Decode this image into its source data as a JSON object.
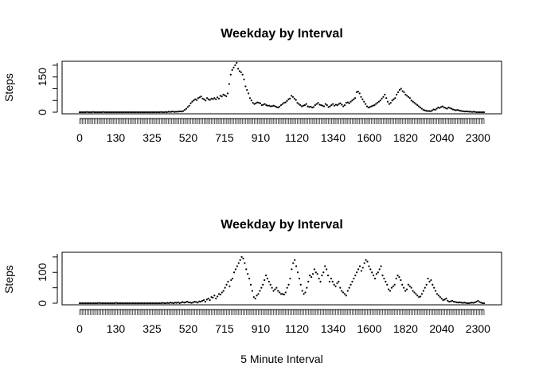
{
  "figure": {
    "xlabel": "5 Minute Interval"
  },
  "chart_data": [
    {
      "type": "scatter",
      "title": "Weekday by Interval",
      "xlabel": "",
      "ylabel": "Steps",
      "ylim": [
        0,
        210
      ],
      "yticks": [
        "0",
        "150"
      ],
      "xticks": [
        "0",
        "130",
        "325",
        "520",
        "715",
        "910",
        "1120",
        "1340",
        "1600",
        "1820",
        "2040",
        "2300"
      ],
      "x_start": 0,
      "x_step": 5,
      "values": [
        0,
        0,
        0,
        0,
        0,
        1,
        0,
        0,
        0,
        1,
        0,
        0,
        0,
        0,
        0,
        0,
        1,
        0,
        0,
        0,
        0,
        0,
        0,
        0,
        0,
        0,
        0,
        0,
        0,
        0,
        0,
        0,
        0,
        0,
        0,
        0,
        0,
        0,
        0,
        0,
        0,
        0,
        0,
        0,
        0,
        0,
        0,
        0,
        0,
        0,
        0,
        0,
        0,
        0,
        0,
        1,
        0,
        0,
        1,
        0,
        2,
        1,
        2,
        3,
        1,
        2,
        2,
        3,
        4,
        3,
        5,
        10,
        15,
        22,
        28,
        38,
        45,
        50,
        55,
        52,
        60,
        63,
        67,
        58,
        55,
        50,
        60,
        55,
        52,
        58,
        56,
        60,
        55,
        63,
        58,
        70,
        67,
        75,
        72,
        68,
        80,
        120,
        160,
        180,
        190,
        200,
        210,
        185,
        175,
        170,
        160,
        140,
        110,
        95,
        80,
        60,
        50,
        40,
        35,
        38,
        42,
        40,
        38,
        30,
        32,
        35,
        30,
        28,
        28,
        25,
        26,
        28,
        25,
        22,
        20,
        24,
        30,
        35,
        40,
        42,
        48,
        55,
        58,
        70,
        65,
        58,
        52,
        40,
        35,
        30,
        25,
        28,
        30,
        35,
        25,
        22,
        24,
        20,
        22,
        30,
        35,
        40,
        32,
        30,
        28,
        25,
        35,
        30,
        22,
        25,
        30,
        35,
        28,
        32,
        30,
        35,
        38,
        32,
        25,
        30,
        40,
        42,
        38,
        45,
        50,
        55,
        60,
        85,
        88,
        80,
        65,
        55,
        45,
        35,
        25,
        20,
        22,
        25,
        28,
        30,
        35,
        40,
        45,
        50,
        58,
        65,
        75,
        60,
        45,
        35,
        40,
        50,
        55,
        60,
        75,
        85,
        95,
        100,
        90,
        85,
        75,
        70,
        65,
        60,
        50,
        45,
        40,
        35,
        30,
        25,
        20,
        15,
        10,
        8,
        6,
        5,
        5,
        4,
        8,
        12,
        10,
        15,
        20,
        18,
        22,
        25,
        20,
        18,
        15,
        20,
        18,
        15,
        12,
        10,
        8,
        10,
        8,
        6,
        5,
        4,
        3,
        4,
        3,
        2,
        2,
        1,
        2,
        1,
        0,
        0,
        0,
        0,
        0,
        0
      ]
    },
    {
      "type": "scatter",
      "title": "Weekday by Interval",
      "xlabel": "5 Minute Interval",
      "ylabel": "Steps",
      "ylim": [
        0,
        160
      ],
      "yticks": [
        "0",
        "100"
      ],
      "xticks": [
        "0",
        "130",
        "325",
        "520",
        "715",
        "910",
        "1120",
        "1340",
        "1600",
        "1820",
        "2040",
        "2300"
      ],
      "x_start": 0,
      "x_step": 5,
      "values": [
        0,
        0,
        0,
        0,
        0,
        0,
        0,
        0,
        0,
        0,
        0,
        0,
        0,
        1,
        0,
        0,
        0,
        0,
        0,
        0,
        0,
        0,
        0,
        0,
        1,
        0,
        0,
        0,
        0,
        0,
        0,
        0,
        0,
        0,
        0,
        0,
        0,
        0,
        0,
        0,
        0,
        0,
        0,
        0,
        0,
        0,
        0,
        0,
        0,
        0,
        0,
        0,
        0,
        0,
        0,
        1,
        0,
        0,
        1,
        0,
        2,
        1,
        0,
        2,
        1,
        3,
        0,
        2,
        4,
        2,
        3,
        5,
        3,
        2,
        1,
        3,
        5,
        4,
        2,
        6,
        5,
        8,
        10,
        5,
        12,
        15,
        10,
        20,
        18,
        25,
        15,
        22,
        30,
        28,
        35,
        40,
        50,
        60,
        70,
        55,
        75,
        80,
        100,
        110,
        120,
        130,
        140,
        150,
        145,
        130,
        110,
        95,
        80,
        60,
        40,
        20,
        15,
        25,
        30,
        40,
        50,
        60,
        75,
        90,
        80,
        70,
        60,
        50,
        40,
        45,
        50,
        40,
        35,
        30,
        30,
        28,
        35,
        50,
        60,
        80,
        110,
        130,
        140,
        120,
        100,
        80,
        60,
        40,
        30,
        35,
        50,
        70,
        90,
        85,
        95,
        110,
        100,
        95,
        80,
        70,
        90,
        100,
        120,
        110,
        90,
        70,
        80,
        70,
        60,
        55,
        65,
        70,
        50,
        40,
        35,
        30,
        25,
        40,
        50,
        60,
        70,
        80,
        90,
        100,
        110,
        120,
        105,
        115,
        130,
        140,
        135,
        120,
        110,
        100,
        90,
        80,
        95,
        100,
        110,
        120,
        90,
        80,
        70,
        60,
        45,
        40,
        50,
        55,
        60,
        80,
        90,
        85,
        75,
        60,
        50,
        40,
        45,
        60,
        55,
        50,
        40,
        35,
        30,
        25,
        20,
        22,
        30,
        40,
        50,
        60,
        80,
        70,
        75,
        60,
        50,
        40,
        30,
        25,
        20,
        15,
        10,
        12,
        15,
        8,
        5,
        6,
        8,
        5,
        4,
        3,
        2,
        3,
        2,
        1,
        2,
        1,
        0,
        0,
        1,
        2,
        1,
        3,
        5,
        8,
        4,
        2,
        0,
        0
      ]
    }
  ]
}
